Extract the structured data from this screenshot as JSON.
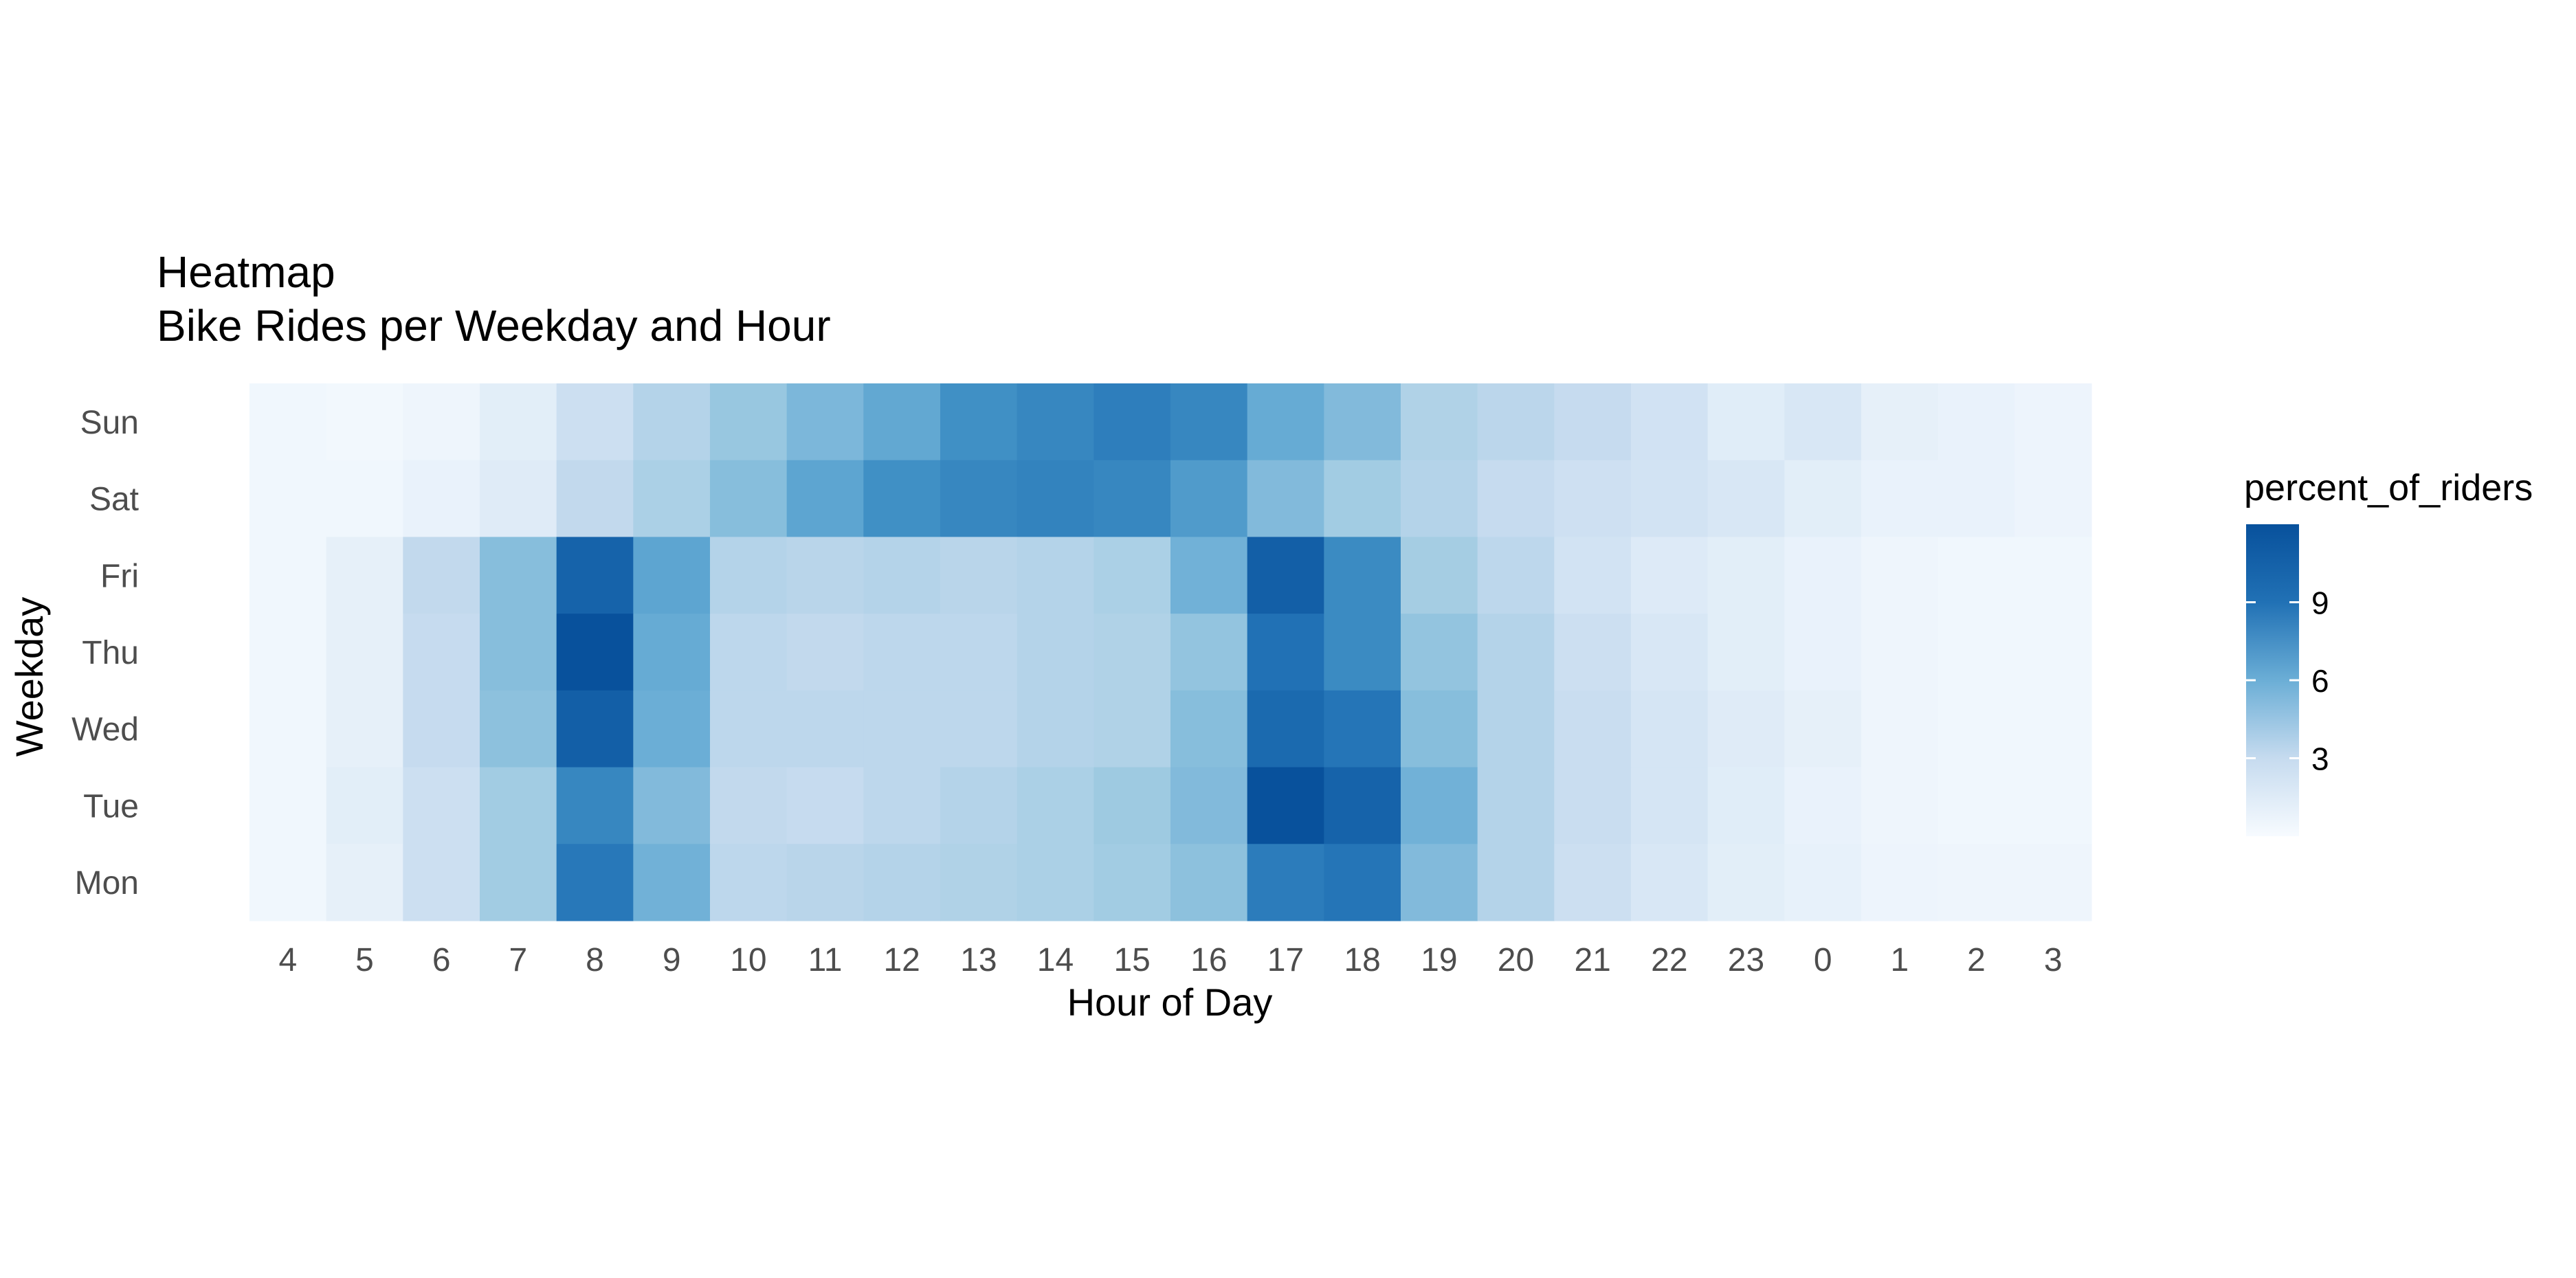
{
  "chart_data": {
    "type": "heatmap",
    "title": "Heatmap",
    "subtitle": "Bike Rides per Weekday and Hour",
    "xlabel": "Hour of Day",
    "ylabel": "Weekday",
    "x": [
      "4",
      "5",
      "6",
      "7",
      "8",
      "9",
      "10",
      "11",
      "12",
      "13",
      "14",
      "15",
      "16",
      "17",
      "18",
      "19",
      "20",
      "21",
      "22",
      "23",
      "0",
      "1",
      "2",
      "3"
    ],
    "y": [
      "Sun",
      "Sat",
      "Fri",
      "Thu",
      "Wed",
      "Tue",
      "Mon"
    ],
    "values": [
      [
        0.4,
        0.3,
        0.5,
        1.2,
        2.6,
        3.8,
        5.0,
        6.0,
        7.0,
        8.5,
        9.0,
        9.5,
        9.0,
        6.8,
        5.8,
        4.0,
        3.5,
        3.0,
        2.3,
        1.3,
        1.8,
        1.0,
        0.8,
        0.6
      ],
      [
        0.4,
        0.4,
        0.8,
        1.4,
        3.2,
        4.2,
        5.6,
        7.2,
        8.5,
        9.0,
        9.2,
        9.0,
        7.8,
        5.8,
        4.6,
        3.8,
        3.0,
        2.5,
        2.2,
        1.8,
        1.2,
        0.8,
        0.8,
        0.6
      ],
      [
        0.4,
        1.0,
        3.2,
        5.6,
        11.0,
        7.2,
        3.8,
        3.6,
        3.8,
        3.6,
        3.8,
        4.2,
        6.4,
        11.2,
        8.8,
        4.5,
        3.4,
        2.2,
        1.5,
        1.2,
        0.8,
        0.5,
        0.4,
        0.4
      ],
      [
        0.4,
        1.0,
        3.0,
        5.6,
        12.0,
        6.8,
        3.4,
        3.2,
        3.4,
        3.4,
        3.8,
        4.0,
        5.2,
        10.2,
        8.8,
        5.2,
        3.8,
        2.6,
        1.8,
        1.2,
        0.8,
        0.5,
        0.4,
        0.4
      ],
      [
        0.4,
        1.0,
        3.0,
        5.4,
        11.2,
        6.6,
        3.4,
        3.4,
        3.4,
        3.4,
        3.8,
        4.0,
        5.6,
        10.6,
        10.0,
        5.6,
        3.8,
        2.8,
        2.0,
        1.4,
        1.0,
        0.5,
        0.4,
        0.4
      ],
      [
        0.4,
        1.2,
        2.6,
        4.6,
        9.0,
        5.8,
        3.2,
        3.0,
        3.4,
        3.8,
        4.2,
        4.8,
        5.8,
        12.0,
        11.0,
        6.4,
        3.8,
        2.8,
        2.0,
        1.3,
        0.8,
        0.5,
        0.4,
        0.4
      ],
      [
        0.4,
        1.0,
        2.6,
        4.6,
        9.8,
        6.4,
        3.4,
        3.6,
        3.8,
        4.0,
        4.2,
        4.6,
        5.4,
        9.6,
        10.0,
        5.8,
        3.8,
        2.6,
        1.8,
        1.2,
        0.9,
        0.6,
        0.5,
        0.5
      ]
    ],
    "legend": {
      "title": "percent_of_riders",
      "ticks": [
        3,
        6,
        9
      ],
      "range": [
        0,
        12
      ],
      "placement": "right"
    },
    "colors": {
      "low": "#f7fbff",
      "high": "#08519c"
    }
  }
}
